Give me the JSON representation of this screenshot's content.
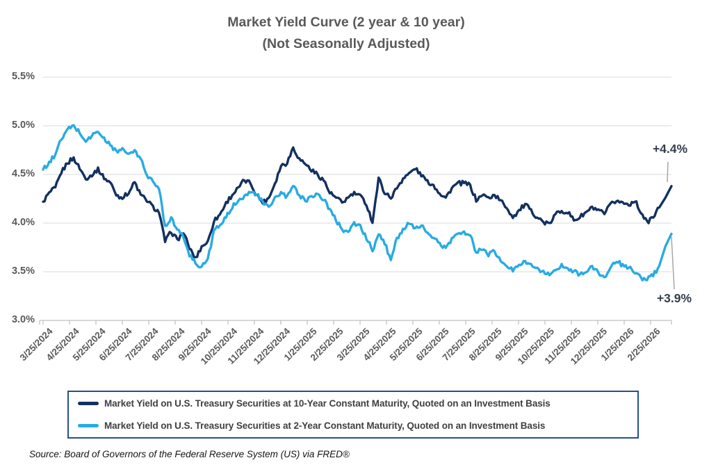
{
  "title": {
    "line1": "Market Yield Curve (2 year & 10 year)",
    "line2": "(Not Seasonally Adjusted)"
  },
  "source": "Source: Board of Governors of the Federal Reserve System (US) via FRED®",
  "colors": {
    "ten_year_line": "#13305f",
    "two_year_line": "#29abe2",
    "gridline": "#d9d9d9",
    "axis": "#bfbfbf",
    "axis_text": "#595959",
    "title_text": "#595959",
    "legend_border": "#24508c",
    "legend_text": "#404040",
    "annotation_text": "#333d4d",
    "leader_line": "#a6a6a6"
  },
  "legend": {
    "position": "bottom",
    "items": [
      "Market Yield on U.S. Treasury Securities at 10-Year Constant Maturity, Quoted on an Investment Basis",
      "Market Yield on U.S. Treasury Securities at 2-Year Constant Maturity, Quoted on an Investment Basis"
    ]
  },
  "chart_data": {
    "type": "line",
    "title": "Market Yield Curve (2 year & 10 year) (Not Seasonally Adjusted)",
    "grid": "horizontal",
    "legend_position": "bottom",
    "y_axis": {
      "unit": "%",
      "min": 3.0,
      "max": 5.5,
      "tick_values": [
        5.5,
        5.0,
        4.5,
        4.0,
        3.5,
        3.0
      ],
      "tick_labels": [
        "5.5%",
        "5.0%",
        "4.5%",
        "4.0%",
        "3.5%",
        "3.0%"
      ]
    },
    "x_axis": {
      "tick_labels": [
        "3/25/2024",
        "4/25/2024",
        "5/25/2024",
        "6/25/2024",
        "7/25/2024",
        "8/25/2024",
        "9/25/2024",
        "10/25/2024",
        "11/25/2024",
        "12/25/2024",
        "1/25/2025",
        "2/25/2025",
        "3/25/2025",
        "4/25/2025",
        "5/25/2025",
        "6/25/2025",
        "7/25/2025",
        "8/25/2025",
        "9/25/2025",
        "10/25/2025",
        "11/25/2025",
        "12/25/2025",
        "1/25/2026",
        "2/25/2026"
      ],
      "range_start": "3/25/2024",
      "range_end": "3/2026"
    },
    "sampling": "weekly approximation of daily series",
    "series": [
      {
        "id": "10-year",
        "name": "Market Yield on U.S. Treasury Securities at 10-Year Constant Maturity, Quoted on an Investment Basis",
        "color": "#13305f",
        "end_label": "+4.4%",
        "end_value": 4.4,
        "values": [
          4.22,
          4.31,
          4.36,
          4.52,
          4.62,
          4.67,
          4.56,
          4.46,
          4.49,
          4.56,
          4.46,
          4.42,
          4.29,
          4.26,
          4.31,
          4.42,
          4.29,
          4.23,
          4.17,
          4.11,
          3.81,
          3.91,
          3.83,
          3.9,
          3.74,
          3.64,
          3.76,
          3.81,
          4.02,
          4.09,
          4.21,
          4.29,
          4.36,
          4.44,
          4.41,
          4.29,
          4.21,
          4.26,
          4.41,
          4.59,
          4.62,
          4.78,
          4.66,
          4.61,
          4.54,
          4.5,
          4.44,
          4.31,
          4.26,
          4.21,
          4.26,
          4.31,
          4.28,
          4.19,
          4.01,
          4.46,
          4.31,
          4.26,
          4.36,
          4.46,
          4.51,
          4.56,
          4.49,
          4.43,
          4.39,
          4.31,
          4.26,
          4.36,
          4.41,
          4.41,
          4.39,
          4.23,
          4.29,
          4.26,
          4.29,
          4.23,
          4.16,
          4.06,
          4.13,
          4.19,
          4.13,
          4.06,
          4.01,
          3.99,
          4.09,
          4.13,
          4.11,
          4.03,
          4.06,
          4.11,
          4.16,
          4.13,
          4.09,
          4.19,
          4.23,
          4.21,
          4.19,
          4.23,
          4.11,
          4.01,
          4.06,
          4.16,
          4.26,
          4.38
        ]
      },
      {
        "id": "2-year",
        "name": "Market Yield on U.S. Treasury Securities at 2-Year Constant Maturity, Quoted on an Investment Basis",
        "color": "#29abe2",
        "end_label": "+3.9%",
        "end_value": 3.9,
        "values": [
          4.55,
          4.62,
          4.71,
          4.86,
          4.96,
          5.0,
          4.93,
          4.84,
          4.9,
          4.94,
          4.87,
          4.8,
          4.74,
          4.76,
          4.71,
          4.74,
          4.66,
          4.5,
          4.42,
          4.36,
          3.97,
          4.06,
          3.93,
          3.86,
          3.67,
          3.59,
          3.55,
          3.63,
          3.92,
          3.97,
          4.06,
          4.16,
          4.24,
          4.28,
          4.31,
          4.3,
          4.21,
          4.16,
          4.26,
          4.31,
          4.27,
          4.38,
          4.29,
          4.23,
          4.28,
          4.3,
          4.24,
          4.14,
          4.03,
          3.94,
          3.91,
          4.0,
          3.97,
          3.84,
          3.72,
          3.88,
          3.79,
          3.63,
          3.84,
          3.94,
          3.99,
          3.94,
          3.97,
          3.91,
          3.84,
          3.79,
          3.74,
          3.84,
          3.89,
          3.91,
          3.87,
          3.7,
          3.73,
          3.67,
          3.71,
          3.61,
          3.56,
          3.51,
          3.58,
          3.61,
          3.57,
          3.54,
          3.5,
          3.46,
          3.52,
          3.57,
          3.54,
          3.51,
          3.47,
          3.5,
          3.55,
          3.49,
          3.44,
          3.54,
          3.6,
          3.57,
          3.54,
          3.49,
          3.44,
          3.42,
          3.46,
          3.56,
          3.76,
          3.89
        ]
      }
    ],
    "annotations": [
      {
        "text": "+4.4%",
        "series": "10-year",
        "position": "end-of-line, upper right"
      },
      {
        "text": "+3.9%",
        "series": "2-year",
        "position": "end-of-line, lower right"
      }
    ]
  }
}
